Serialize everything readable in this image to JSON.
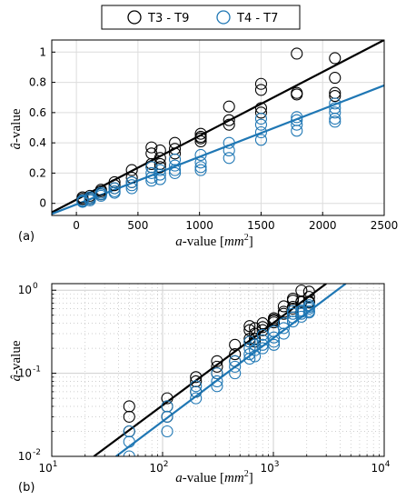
{
  "legend": {
    "placement": "top-center-outside",
    "entries": [
      {
        "label": "T3 - T9",
        "color": "#000000",
        "marker": "open-circle"
      },
      {
        "label": "T4 - T7",
        "color": "#1f77b4",
        "marker": "open-circle"
      }
    ]
  },
  "chart_data": [
    {
      "type": "scatter",
      "panel_label": "(a)",
      "title": "",
      "xlabel_var": "a",
      "xlabel_text": "-value",
      "xlabel_unit": "mm",
      "xlabel_unit_exp": "2",
      "ylabel_var": "â",
      "ylabel_text": "-value",
      "x_scale": "linear",
      "y_scale": "linear",
      "xlim": [
        -200,
        2500
      ],
      "ylim": [
        -0.08,
        1.08
      ],
      "xticks": [
        0,
        500,
        1000,
        1500,
        2000,
        2500
      ],
      "xtick_labels": [
        "0",
        "500",
        "1000",
        "1500",
        "2000",
        "2500"
      ],
      "yticks": [
        0,
        0.2,
        0.4,
        0.6,
        0.8,
        1
      ],
      "ytick_labels": [
        "0",
        "0.2",
        "0.4",
        "0.6",
        "0.8",
        "1"
      ],
      "grid": true,
      "series": [
        {
          "name": "T3 - T9",
          "color": "#000000",
          "points": [
            [
              50,
              0.03
            ],
            [
              50,
              0.04
            ],
            [
              50,
              0.02
            ],
            [
              110,
              0.05
            ],
            [
              110,
              0.04
            ],
            [
              110,
              0.03
            ],
            [
              200,
              0.09
            ],
            [
              200,
              0.08
            ],
            [
              200,
              0.06
            ],
            [
              310,
              0.14
            ],
            [
              310,
              0.12
            ],
            [
              310,
              0.1
            ],
            [
              450,
              0.22
            ],
            [
              450,
              0.17
            ],
            [
              450,
              0.14
            ],
            [
              610,
              0.37
            ],
            [
              610,
              0.33
            ],
            [
              610,
              0.26
            ],
            [
              610,
              0.24
            ],
            [
              680,
              0.35
            ],
            [
              680,
              0.3
            ],
            [
              680,
              0.26
            ],
            [
              680,
              0.24
            ],
            [
              800,
              0.4
            ],
            [
              800,
              0.36
            ],
            [
              800,
              0.33
            ],
            [
              1010,
              0.46
            ],
            [
              1010,
              0.44
            ],
            [
              1010,
              0.43
            ],
            [
              1010,
              0.41
            ],
            [
              1240,
              0.64
            ],
            [
              1240,
              0.55
            ],
            [
              1240,
              0.52
            ],
            [
              1500,
              0.79
            ],
            [
              1500,
              0.75
            ],
            [
              1500,
              0.63
            ],
            [
              1500,
              0.6
            ],
            [
              1790,
              0.99
            ],
            [
              1790,
              0.73
            ],
            [
              1790,
              0.72
            ],
            [
              2100,
              0.96
            ],
            [
              2100,
              0.83
            ],
            [
              2100,
              0.73
            ],
            [
              2100,
              0.71
            ]
          ]
        },
        {
          "name": "T4 - T7",
          "color": "#1f77b4",
          "points": [
            [
              50,
              0.02
            ],
            [
              50,
              0.015
            ],
            [
              50,
              0.01
            ],
            [
              110,
              0.04
            ],
            [
              110,
              0.03
            ],
            [
              110,
              0.02
            ],
            [
              200,
              0.07
            ],
            [
              200,
              0.06
            ],
            [
              200,
              0.05
            ],
            [
              310,
              0.1
            ],
            [
              310,
              0.08
            ],
            [
              310,
              0.07
            ],
            [
              450,
              0.14
            ],
            [
              450,
              0.12
            ],
            [
              450,
              0.1
            ],
            [
              610,
              0.24
            ],
            [
              610,
              0.2
            ],
            [
              610,
              0.17
            ],
            [
              610,
              0.15
            ],
            [
              680,
              0.22
            ],
            [
              680,
              0.19
            ],
            [
              680,
              0.16
            ],
            [
              800,
              0.29
            ],
            [
              800,
              0.25
            ],
            [
              800,
              0.22
            ],
            [
              800,
              0.2
            ],
            [
              1010,
              0.32
            ],
            [
              1010,
              0.27
            ],
            [
              1010,
              0.24
            ],
            [
              1010,
              0.22
            ],
            [
              1240,
              0.4
            ],
            [
              1240,
              0.35
            ],
            [
              1240,
              0.3
            ],
            [
              1500,
              0.56
            ],
            [
              1500,
              0.52
            ],
            [
              1500,
              0.47
            ],
            [
              1500,
              0.42
            ],
            [
              1790,
              0.57
            ],
            [
              1790,
              0.55
            ],
            [
              1790,
              0.52
            ],
            [
              1790,
              0.48
            ],
            [
              2100,
              0.66
            ],
            [
              2100,
              0.63
            ],
            [
              2100,
              0.6
            ],
            [
              2100,
              0.56
            ],
            [
              2100,
              0.54
            ]
          ]
        }
      ],
      "fit_lines": [
        {
          "series": "T3 - T9",
          "color": "#000000",
          "from": [
            -200,
            -0.06
          ],
          "to": [
            2500,
            1.08
          ]
        },
        {
          "series": "T4 - T7",
          "color": "#1f77b4",
          "from": [
            -200,
            -0.07
          ],
          "to": [
            2500,
            0.78
          ]
        }
      ]
    },
    {
      "type": "scatter",
      "panel_label": "(b)",
      "title": "",
      "xlabel_var": "a",
      "xlabel_text": "-value",
      "xlabel_unit": "mm",
      "xlabel_unit_exp": "2",
      "ylabel_var": "â",
      "ylabel_text": "-value",
      "x_scale": "log",
      "y_scale": "log",
      "xlim": [
        10,
        10000
      ],
      "ylim": [
        0.01,
        1.2
      ],
      "xticks": [
        10,
        100,
        1000,
        10000
      ],
      "xtick_labels": [
        {
          "base": "10",
          "exp": "1"
        },
        {
          "base": "10",
          "exp": "2"
        },
        {
          "base": "10",
          "exp": "3"
        },
        {
          "base": "10",
          "exp": "4"
        }
      ],
      "yticks": [
        0.01,
        0.1,
        1
      ],
      "ytick_labels": [
        {
          "base": "10",
          "exp": "-2"
        },
        {
          "base": "10",
          "exp": "-1"
        },
        {
          "base": "10",
          "exp": "0"
        }
      ],
      "grid": true,
      "grid_minor": true,
      "series_ref": "same data as panel (a)",
      "fit_lines": [
        {
          "series": "T3 - T9",
          "color": "#000000",
          "from": [
            24,
            0.01
          ],
          "to": [
            3000,
            1.2
          ]
        },
        {
          "series": "T4 - T7",
          "color": "#1f77b4",
          "from": [
            38,
            0.01
          ],
          "to": [
            4500,
            1.2
          ]
        }
      ]
    }
  ]
}
